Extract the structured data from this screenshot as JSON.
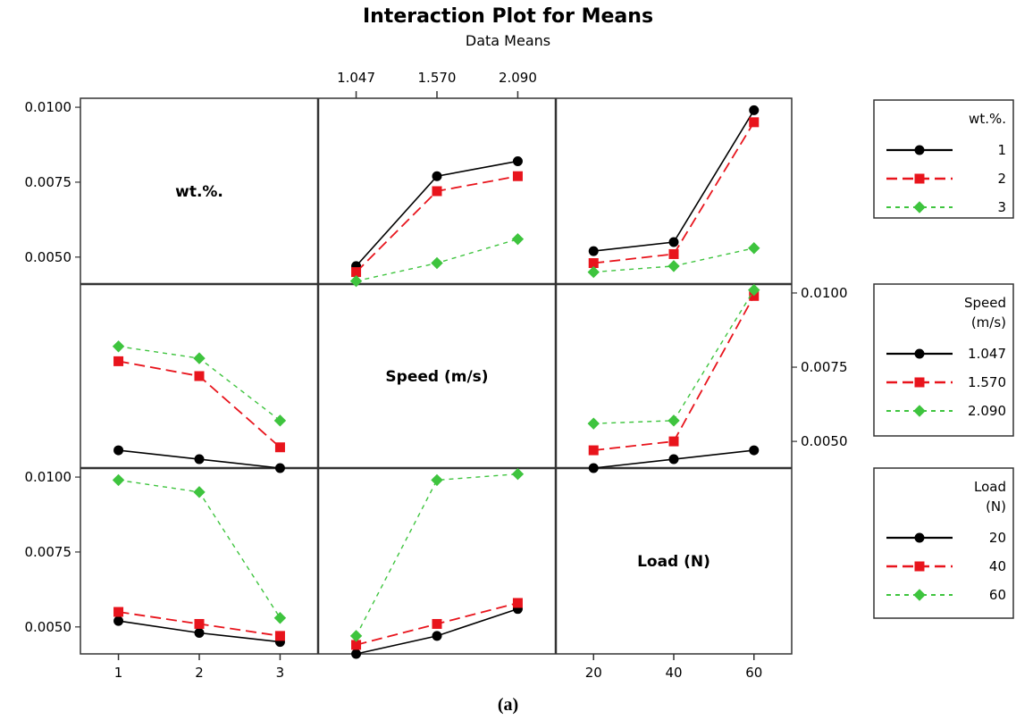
{
  "title": "Interaction Plot for Means",
  "subtitle": "Data Means",
  "caption": "(a)",
  "colors": {
    "level1": "#000000",
    "level2": "#e8141c",
    "level3": "#3ec43e"
  },
  "markers": [
    "circle",
    "square",
    "diamond"
  ],
  "chart_data": {
    "type": "line",
    "title": "Interaction Plot for Means",
    "subtitle": "Data Means",
    "factors": [
      {
        "name": "wt.%.",
        "label": "wt.%.",
        "levels": [
          "1",
          "2",
          "3"
        ]
      },
      {
        "name": "Speed",
        "label": "Speed (m/s)",
        "legend_title": [
          "Speed",
          "(m/s)"
        ],
        "levels": [
          "1.047",
          "1.570",
          "2.090"
        ]
      },
      {
        "name": "Load",
        "label": "Load (N)",
        "legend_title": [
          "Load",
          "(N)"
        ],
        "levels": [
          "20",
          "40",
          "60"
        ]
      }
    ],
    "legends": [
      {
        "title": [
          "wt.%."
        ],
        "entries": [
          "1",
          "2",
          "3"
        ]
      },
      {
        "title": [
          "Speed",
          "(m/s)"
        ],
        "entries": [
          "1.047",
          "1.570",
          "2.090"
        ]
      },
      {
        "title": [
          "Load",
          "(N)"
        ],
        "entries": [
          "20",
          "40",
          "60"
        ]
      }
    ],
    "y_axis": {
      "ylim": [
        0.0041,
        0.0103
      ],
      "ticks": [
        0.005,
        0.0075,
        0.01
      ],
      "tick_labels": [
        "0.0050",
        "0.0075",
        "0.0100"
      ]
    },
    "x_top_ticks": [
      "1.047",
      "1.570",
      "2.090"
    ],
    "x_bottom_ticks_col1": [
      "1",
      "2",
      "3"
    ],
    "x_bottom_ticks_col3": [
      "20",
      "40",
      "60"
    ],
    "panels": [
      {
        "id": "r1c2",
        "row": 1,
        "col": 2,
        "x_factor": "Speed",
        "trace_factor": "wt.%.",
        "series": [
          {
            "name": "1",
            "values": [
              0.0047,
              0.0077,
              0.0082
            ]
          },
          {
            "name": "2",
            "values": [
              0.0045,
              0.0072,
              0.0077
            ]
          },
          {
            "name": "3",
            "values": [
              0.0042,
              0.0048,
              0.0056
            ]
          }
        ]
      },
      {
        "id": "r1c3",
        "row": 1,
        "col": 3,
        "x_factor": "Load",
        "trace_factor": "wt.%.",
        "series": [
          {
            "name": "1",
            "values": [
              0.0052,
              0.0055,
              0.0099
            ]
          },
          {
            "name": "2",
            "values": [
              0.0048,
              0.0051,
              0.0095
            ]
          },
          {
            "name": "3",
            "values": [
              0.0045,
              0.0047,
              0.0053
            ]
          }
        ]
      },
      {
        "id": "r2c1",
        "row": 2,
        "col": 1,
        "x_factor": "wt.%.",
        "trace_factor": "Speed",
        "series": [
          {
            "name": "1.047",
            "values": [
              0.0047,
              0.0044,
              0.0041
            ]
          },
          {
            "name": "1.570",
            "values": [
              0.0077,
              0.0072,
              0.0048
            ]
          },
          {
            "name": "2.090",
            "values": [
              0.0082,
              0.0078,
              0.0057
            ]
          }
        ]
      },
      {
        "id": "r2c3",
        "row": 2,
        "col": 3,
        "x_factor": "Load",
        "trace_factor": "Speed",
        "series": [
          {
            "name": "1.047",
            "values": [
              0.0041,
              0.0044,
              0.0047
            ]
          },
          {
            "name": "1.570",
            "values": [
              0.0047,
              0.005,
              0.0099
            ]
          },
          {
            "name": "2.090",
            "values": [
              0.0056,
              0.0057,
              0.0101
            ]
          }
        ]
      },
      {
        "id": "r3c1",
        "row": 3,
        "col": 1,
        "x_factor": "wt.%.",
        "trace_factor": "Load",
        "series": [
          {
            "name": "20",
            "values": [
              0.0052,
              0.0048,
              0.0045
            ]
          },
          {
            "name": "40",
            "values": [
              0.0055,
              0.0051,
              0.0047
            ]
          },
          {
            "name": "60",
            "values": [
              0.0099,
              0.0095,
              0.0053
            ]
          }
        ]
      },
      {
        "id": "r3c2",
        "row": 3,
        "col": 2,
        "x_factor": "Speed",
        "trace_factor": "Load",
        "series": [
          {
            "name": "20",
            "values": [
              0.0041,
              0.0047,
              0.0056
            ]
          },
          {
            "name": "40",
            "values": [
              0.0044,
              0.0051,
              0.0058
            ]
          },
          {
            "name": "60",
            "values": [
              0.0047,
              0.0099,
              0.0101
            ]
          }
        ]
      }
    ],
    "diagonal_labels": [
      "wt.%.",
      "Speed (m/s)",
      "Load (N)"
    ]
  }
}
